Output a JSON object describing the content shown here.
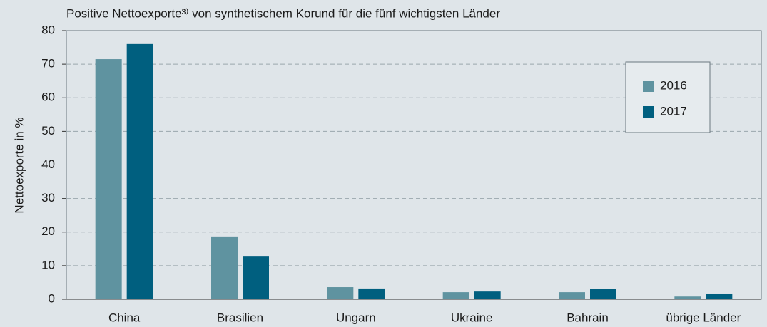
{
  "chart_data": {
    "type": "bar",
    "title": "Positive Nettoexporte³⁾ von synthetischem Korund für die fünf wichtigsten Länder",
    "y_label": "Nettoexporte in %",
    "categories": [
      "China",
      "Brasilien",
      "Ungarn",
      "Ukraine",
      "Bahrain",
      "übrige Länder"
    ],
    "series": [
      {
        "name": "2016",
        "color": "#5f93a0",
        "values": [
          71.5,
          18.7,
          3.6,
          2.1,
          2.1,
          0.8
        ]
      },
      {
        "name": "2017",
        "color": "#005f7f",
        "values": [
          76.0,
          12.7,
          3.2,
          2.3,
          3.0,
          1.7
        ]
      }
    ],
    "ylim": [
      0,
      80
    ],
    "yticks": [
      0,
      10,
      20,
      30,
      40,
      50,
      60,
      70,
      80
    ],
    "grid": true,
    "legend": "upper right"
  }
}
